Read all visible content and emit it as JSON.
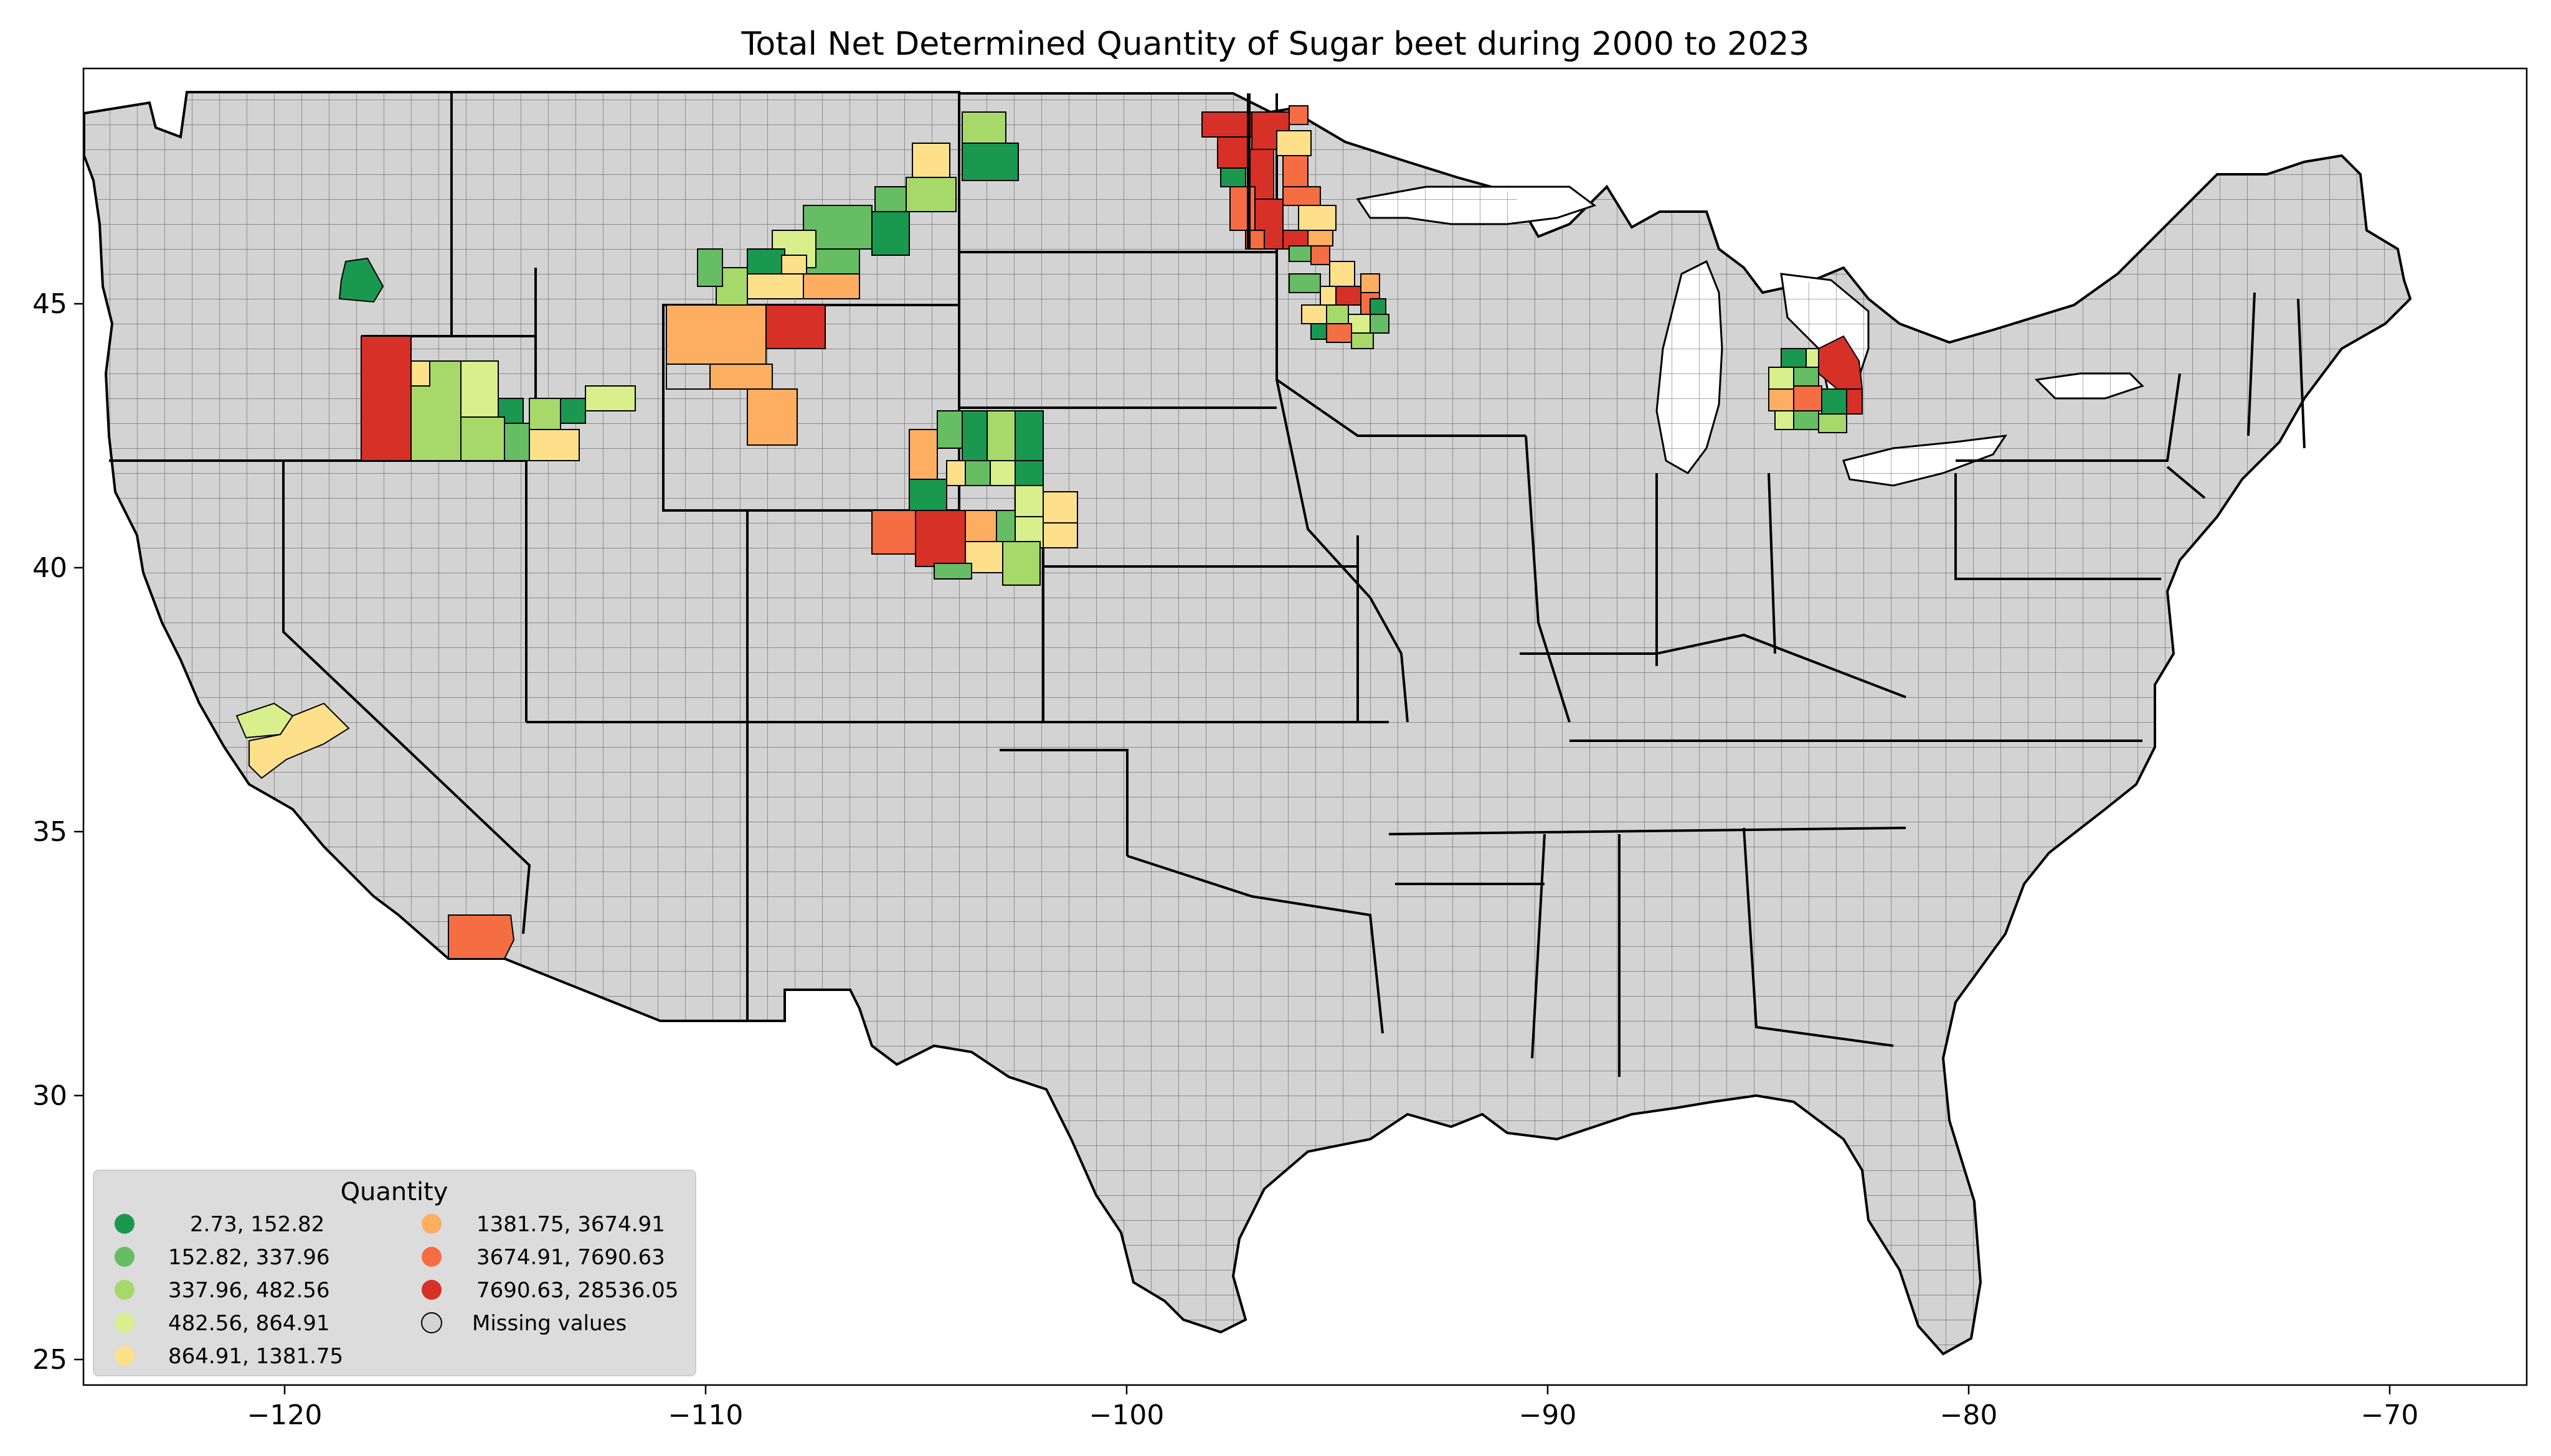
{
  "title": "Total Net Determined Quantity of Sugar beet during 2000 to 2023",
  "axes": {
    "x_ticks": [
      "−120",
      "−110",
      "−100",
      "−90",
      "−80",
      "−70"
    ],
    "y_ticks": [
      "45",
      "40",
      "35",
      "30",
      "25"
    ]
  },
  "colors": {
    "base_fill": "#d3d3d3",
    "border": "#000000"
  },
  "legend": {
    "title": "Quantity",
    "items": [
      {
        "label": "2.73,   152.82",
        "color": "#1a9850"
      },
      {
        "label": "152.82,   337.96",
        "color": "#66bd63"
      },
      {
        "label": "337.96,   482.56",
        "color": "#a6d96a"
      },
      {
        "label": "482.56,   864.91",
        "color": "#d9ef8b"
      },
      {
        "label": "864.91,  1381.75",
        "color": "#fee08b"
      },
      {
        "label": "1381.75,  3674.91",
        "color": "#fdae61"
      },
      {
        "label": "3674.91,  7690.63",
        "color": "#f46d43"
      },
      {
        "label": "7690.63, 28536.05",
        "color": "#d73027"
      },
      {
        "label": "Missing values",
        "color": "#d3d3d3"
      }
    ]
  }
}
